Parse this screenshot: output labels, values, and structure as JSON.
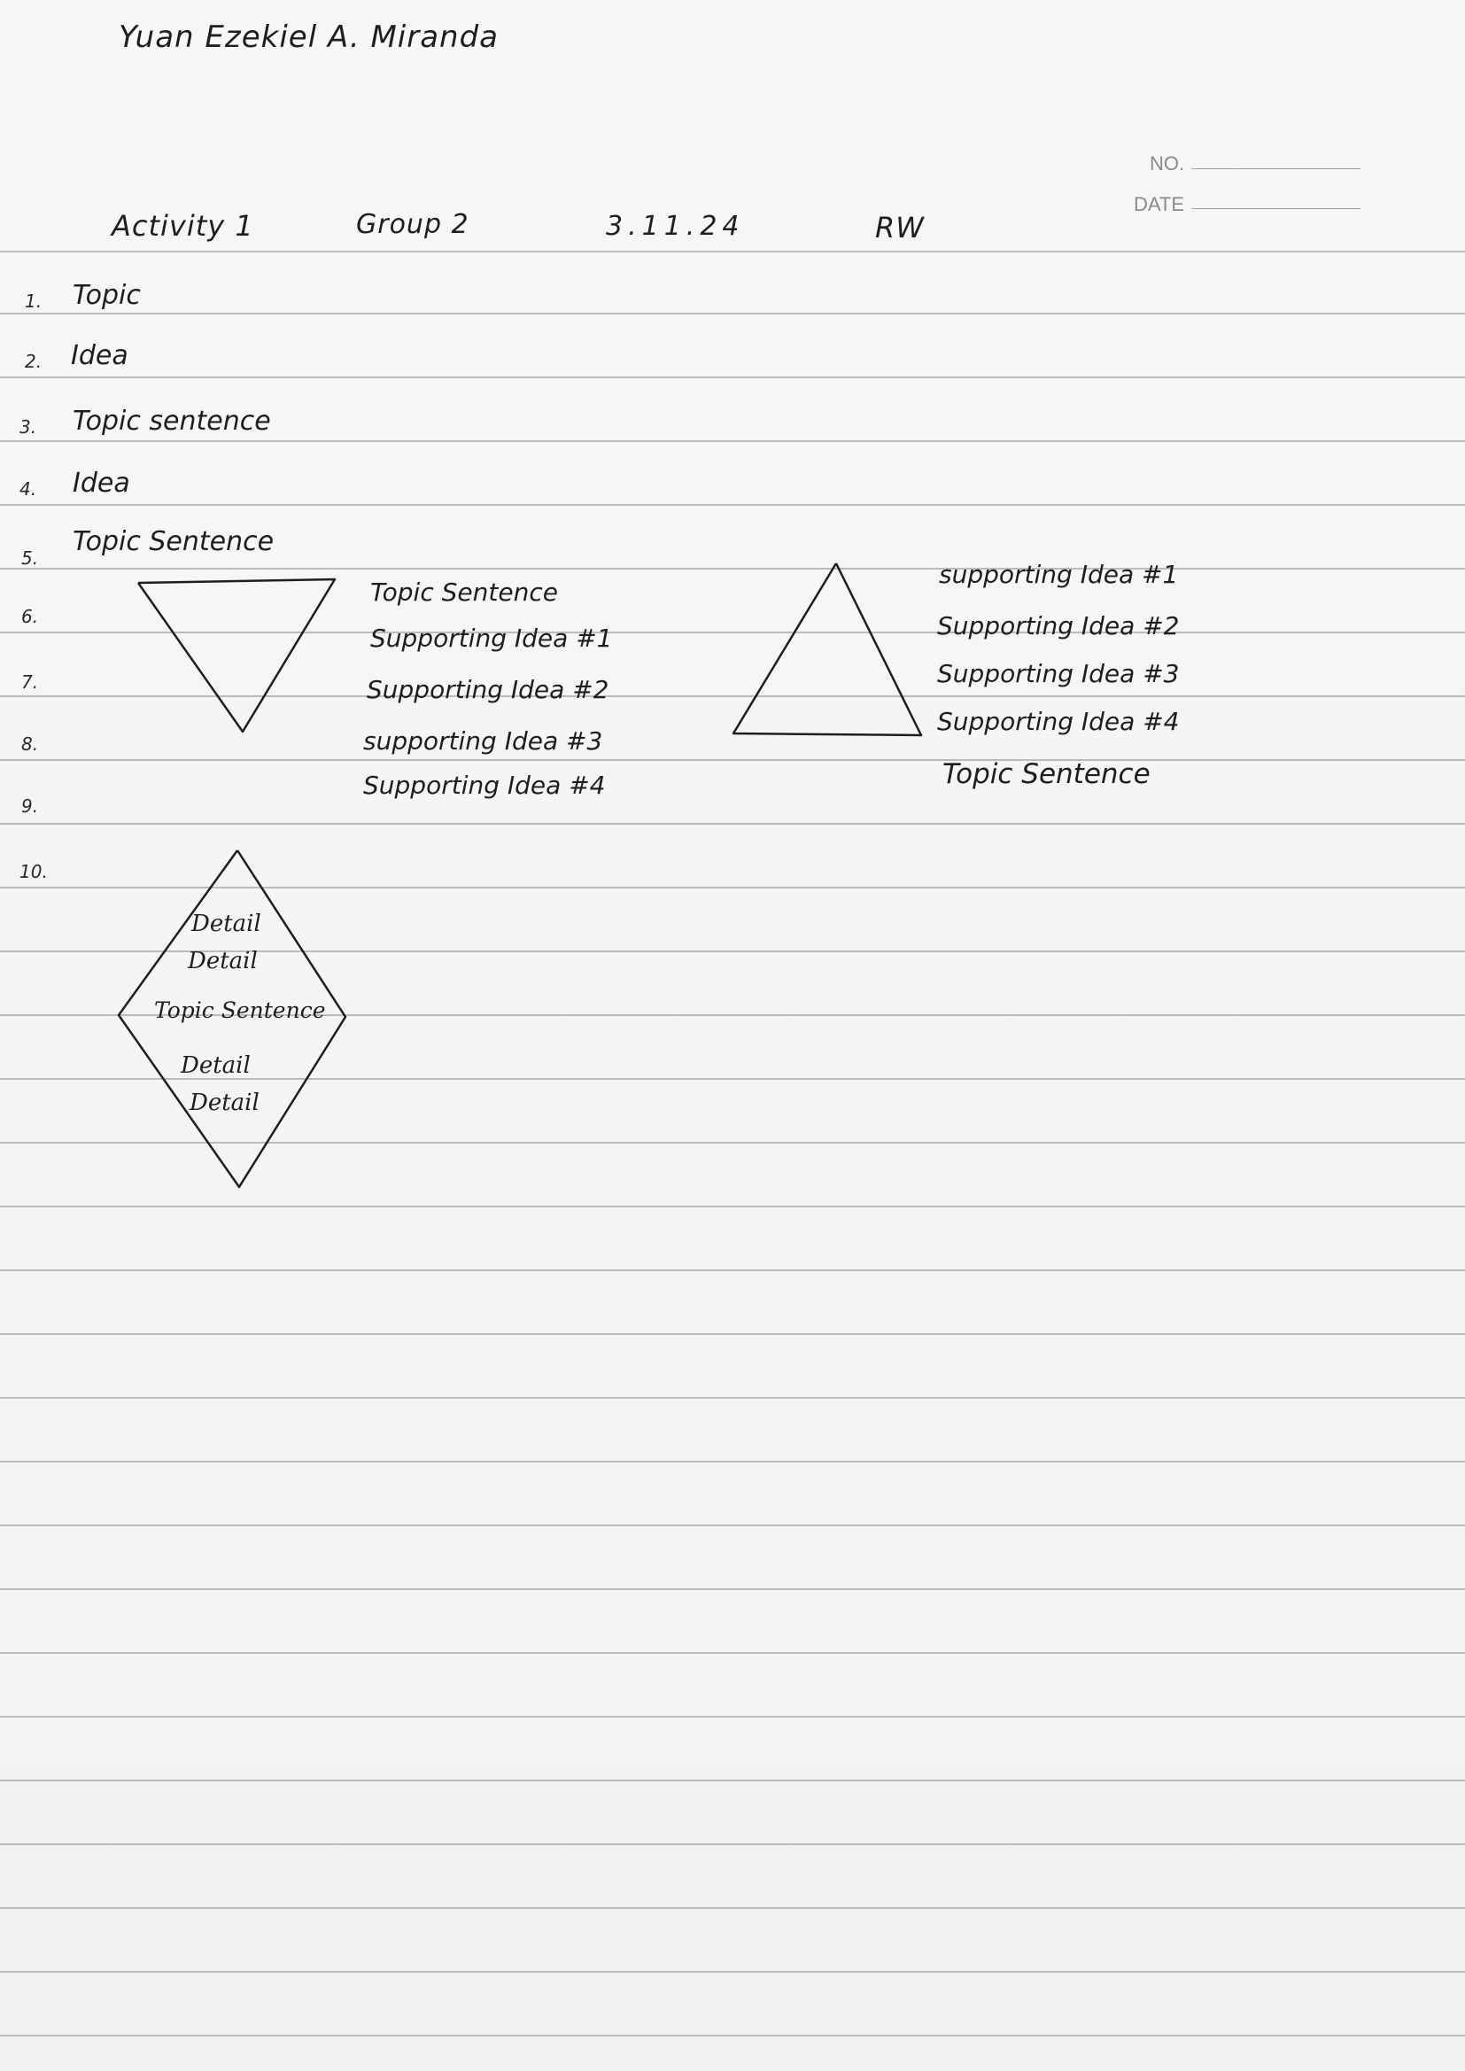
{
  "header": {
    "name": "Yuan Ezekiel A. Miranda",
    "activity": "Activity 1",
    "group": "Group 2",
    "date": "3.11.24",
    "subject": "RW",
    "no_label": "NO.",
    "date_label": "DATE"
  },
  "list": [
    {
      "num": "1.",
      "text": "Topic"
    },
    {
      "num": "2.",
      "text": "Idea"
    },
    {
      "num": "3.",
      "text": "Topic sentence"
    },
    {
      "num": "4.",
      "text": "Idea"
    },
    {
      "num": "5.",
      "text": "Topic Sentence"
    },
    {
      "num": "6.",
      "text": ""
    },
    {
      "num": "7.",
      "text": ""
    },
    {
      "num": "8.",
      "text": ""
    },
    {
      "num": "9.",
      "text": ""
    },
    {
      "num": "10.",
      "text": ""
    }
  ],
  "inverted_triangle": {
    "labels": [
      "Topic Sentence",
      "Supporting Idea #1",
      "Supporting Idea #2",
      "supporting Idea #3",
      "Supporting Idea #4"
    ]
  },
  "upright_triangle": {
    "labels": [
      "supporting Idea #1",
      "Supporting Idea #2",
      "Supporting Idea #3",
      "Supporting Idea #4",
      "Topic Sentence"
    ]
  },
  "diamond": {
    "labels": [
      "Detail",
      "Detail",
      "Topic Sentence",
      "Detail",
      "Detail"
    ]
  }
}
